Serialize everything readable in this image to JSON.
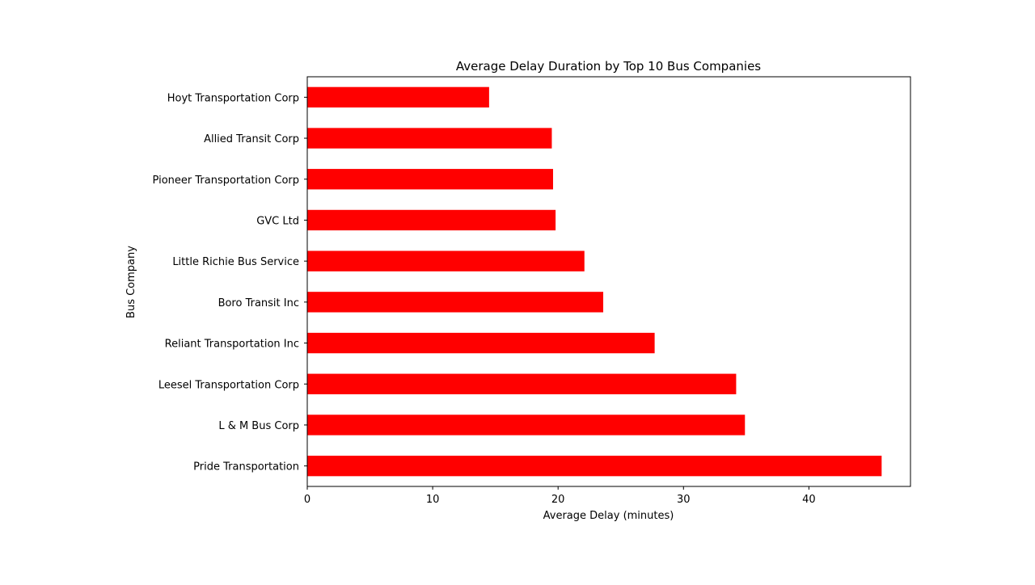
{
  "chart_data": {
    "type": "bar",
    "orientation": "horizontal",
    "title": "Average Delay Duration by Top 10 Bus Companies",
    "xlabel": "Average Delay (minutes)",
    "ylabel": "Bus Company",
    "categories": [
      "Pride Transportation",
      "L & M Bus Corp",
      "Leesel Transportation Corp",
      "Reliant Transportation Inc",
      "Boro Transit Inc",
      "Little Richie Bus Service",
      "GVC Ltd",
      "Pioneer Transportation Corp",
      "Allied Transit Corp",
      "Hoyt Transportation Corp"
    ],
    "values": [
      45.8,
      34.9,
      34.2,
      27.7,
      23.6,
      22.1,
      19.8,
      19.6,
      19.5,
      14.5
    ],
    "xlim": [
      0,
      48.1
    ],
    "xticks": [
      0,
      10,
      20,
      30,
      40
    ],
    "bar_color": "#ff0000",
    "grid": false,
    "legend": "none"
  }
}
